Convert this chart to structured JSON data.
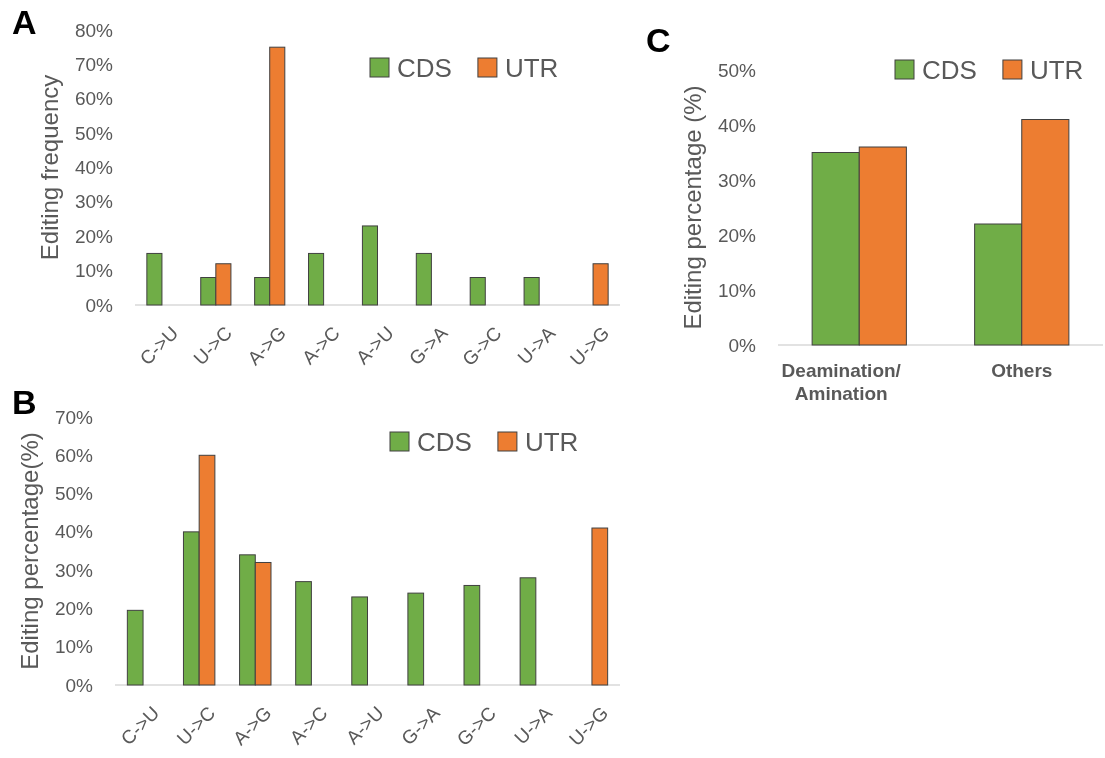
{
  "chart_data": [
    {
      "type": "bar",
      "title": "A",
      "ylabel": "Editing frequency",
      "categories": [
        "C->U",
        "U->C",
        "A->G",
        "A->C",
        "A->U",
        "G->A",
        "G->C",
        "U->A",
        "U->G"
      ],
      "series": [
        {
          "name": "CDS",
          "color": "#70ad47",
          "values": [
            15,
            8,
            8,
            15,
            23,
            15,
            8,
            8,
            null
          ]
        },
        {
          "name": "UTR",
          "color": "#ed7d31",
          "values": [
            null,
            12,
            75,
            null,
            null,
            null,
            null,
            null,
            12
          ]
        }
      ],
      "ylim": [
        0,
        80
      ],
      "yticks": [
        {
          "value": 0,
          "label": "0%"
        },
        {
          "value": 10,
          "label": "10%"
        },
        {
          "value": 20,
          "label": "20%"
        },
        {
          "value": 30,
          "label": "30%"
        },
        {
          "value": 40,
          "label": "40%"
        },
        {
          "value": 50,
          "label": "50%"
        },
        {
          "value": 60,
          "label": "60%"
        },
        {
          "value": 70,
          "label": "70%"
        },
        {
          "value": 80,
          "label": "80%"
        }
      ],
      "grid": false,
      "legend": "top right"
    },
    {
      "type": "bar",
      "title": "B",
      "ylabel": "Editing percentage(%)",
      "categories": [
        "C->U",
        "U->C",
        "A->G",
        "A->C",
        "A->U",
        "G->A",
        "G->C",
        "U->A",
        "U->G"
      ],
      "series": [
        {
          "name": "CDS",
          "color": "#70ad47",
          "values": [
            19.5,
            40,
            34,
            27,
            23,
            24,
            26,
            28,
            null
          ]
        },
        {
          "name": "UTR",
          "color": "#ed7d31",
          "values": [
            null,
            60,
            32,
            null,
            null,
            null,
            null,
            null,
            41
          ]
        }
      ],
      "ylim": [
        0,
        70
      ],
      "yticks": [
        {
          "value": 0,
          "label": "0%"
        },
        {
          "value": 10,
          "label": "10%"
        },
        {
          "value": 20,
          "label": "20%"
        },
        {
          "value": 30,
          "label": "30%"
        },
        {
          "value": 40,
          "label": "40%"
        },
        {
          "value": 50,
          "label": "50%"
        },
        {
          "value": 60,
          "label": "60%"
        },
        {
          "value": 70,
          "label": "70%"
        }
      ],
      "grid": false,
      "legend": "top right"
    },
    {
      "type": "bar",
      "title": "C",
      "ylabel": "Editing percentage (%)",
      "categories": [
        "Deamination/ Amination",
        "Others"
      ],
      "series": [
        {
          "name": "CDS",
          "color": "#70ad47",
          "values": [
            35,
            22
          ]
        },
        {
          "name": "UTR",
          "color": "#ed7d31",
          "values": [
            36,
            41
          ]
        }
      ],
      "ylim": [
        0,
        50
      ],
      "yticks": [
        {
          "value": 0,
          "label": "0%"
        },
        {
          "value": 10,
          "label": "10%"
        },
        {
          "value": 20,
          "label": "20%"
        },
        {
          "value": 30,
          "label": "30%"
        },
        {
          "value": 40,
          "label": "40%"
        },
        {
          "value": 50,
          "label": "50%"
        }
      ],
      "grid": false,
      "legend": "top right"
    }
  ]
}
